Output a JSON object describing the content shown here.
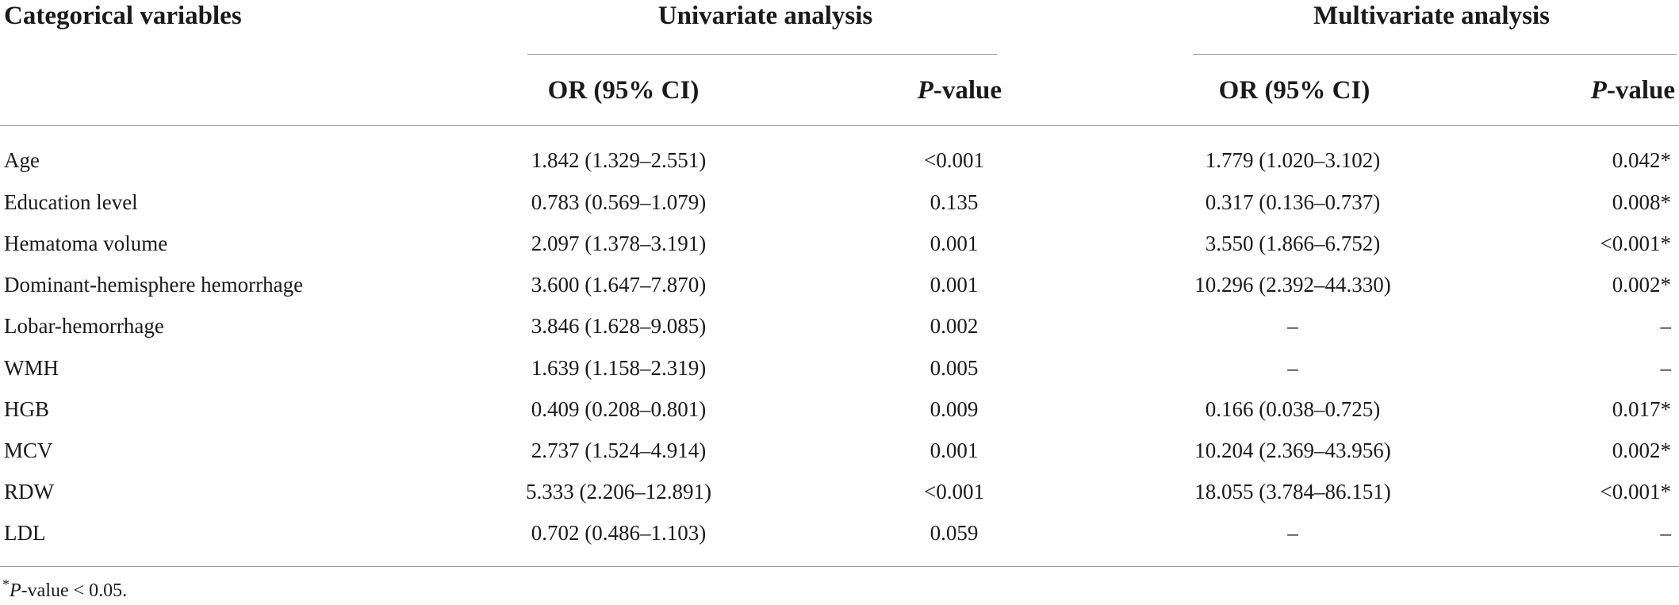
{
  "table": {
    "header": {
      "col_label": "Categorical variables",
      "group_univariate": "Univariate analysis",
      "group_multivariate": "Multivariate analysis",
      "or_ci": "OR (95% CI)",
      "p_italic": "P",
      "p_suffix": "-value"
    },
    "rows": [
      {
        "variable": "Age",
        "uni_or": "1.842 (1.329–2.551)",
        "uni_p": "<0.001",
        "multi_or": "1.779 (1.020–3.102)",
        "multi_p": "0.042*"
      },
      {
        "variable": "Education level",
        "uni_or": "0.783 (0.569–1.079)",
        "uni_p": "0.135",
        "multi_or": "0.317 (0.136–0.737)",
        "multi_p": "0.008*"
      },
      {
        "variable": "Hematoma volume",
        "uni_or": "2.097 (1.378–3.191)",
        "uni_p": "0.001",
        "multi_or": "3.550 (1.866–6.752)",
        "multi_p": "<0.001*"
      },
      {
        "variable": "Dominant-hemisphere hemorrhage",
        "uni_or": "3.600 (1.647–7.870)",
        "uni_p": "0.001",
        "multi_or": "10.296 (2.392–44.330)",
        "multi_p": "0.002*"
      },
      {
        "variable": "Lobar-hemorrhage",
        "uni_or": "3.846 (1.628–9.085)",
        "uni_p": "0.002",
        "multi_or": "–",
        "multi_p": "–"
      },
      {
        "variable": "WMH",
        "uni_or": "1.639 (1.158–2.319)",
        "uni_p": "0.005",
        "multi_or": "–",
        "multi_p": "–"
      },
      {
        "variable": "HGB",
        "uni_or": "0.409 (0.208–0.801)",
        "uni_p": "0.009",
        "multi_or": "0.166 (0.038–0.725)",
        "multi_p": "0.017*"
      },
      {
        "variable": "MCV",
        "uni_or": "2.737 (1.524–4.914)",
        "uni_p": "0.001",
        "multi_or": "10.204 (2.369–43.956)",
        "multi_p": "0.002*"
      },
      {
        "variable": "RDW",
        "uni_or": "5.333 (2.206–12.891)",
        "uni_p": "<0.001",
        "multi_or": "18.055 (3.784–86.151)",
        "multi_p": "<0.001*"
      },
      {
        "variable": "LDL",
        "uni_or": "0.702 (0.486–1.103)",
        "uni_p": "0.059",
        "multi_or": "–",
        "multi_p": "–"
      }
    ],
    "footnote": {
      "star": "*",
      "p_italic": "P",
      "text": "-value < 0.05."
    }
  }
}
